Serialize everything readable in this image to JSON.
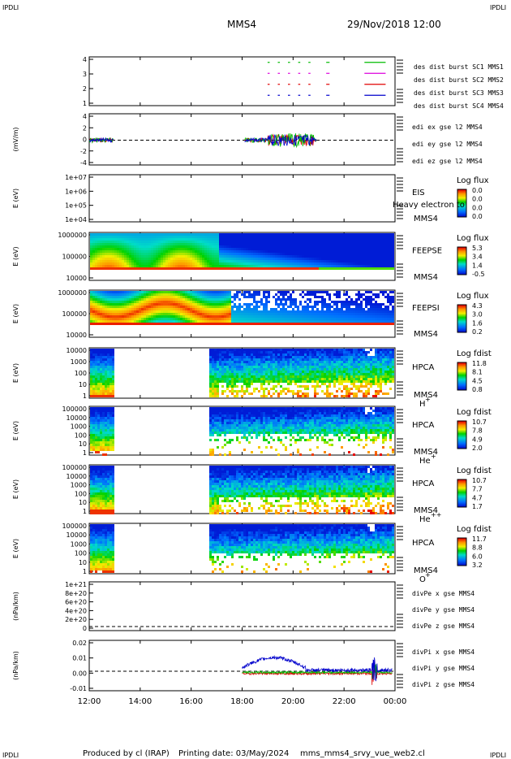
{
  "header": {
    "corner_tl": "IPDLI",
    "corner_tr": "IPDLI",
    "corner_bl": "IPDLI",
    "corner_br": "IPDLI",
    "spacecraft": "MMS4",
    "date": "29/Nov/2018 12:00"
  },
  "footer": {
    "produced": "Produced by cl (IRAP)",
    "printing": "Printing date: 03/May/2024",
    "script": "mms_mms4_srvy_vue_web2.cl"
  },
  "time_axis": [
    "12:00",
    "14:00",
    "16:00",
    "18:00",
    "20:00",
    "22:00",
    "00:00"
  ],
  "colors": {
    "mms1": "#0000cc",
    "mms2": "#e00000",
    "mms3": "#dd00dd",
    "mms4": "#00bb00",
    "ex": "#dd0000",
    "ey": "#00bb00",
    "ez": "#0000cc"
  },
  "chart_data": [
    {
      "type": "line",
      "title": "",
      "ylabel": "",
      "ylim": [
        0.5,
        4.5
      ],
      "yticks": [
        "4",
        "3",
        "2",
        "1"
      ],
      "legend": [
        "des dist burst SC1 MMS1",
        "des dist burst SC2 MMS2",
        "des dist burst SC3 MMS3",
        "des dist burst SC4 MMS4"
      ],
      "series": [
        {
          "name": "des dist burst SC1 MMS1",
          "level": 1,
          "intervals_h": [
            [
              19.0,
              19.05
            ],
            [
              19.4,
              19.45
            ],
            [
              19.8,
              19.85
            ],
            [
              20.2,
              20.25
            ],
            [
              20.6,
              20.65
            ],
            [
              21.3,
              21.4
            ],
            [
              22.8,
              23.6
            ]
          ]
        },
        {
          "name": "des dist burst SC2 MMS2",
          "level": 2,
          "intervals_h": [
            [
              19.0,
              19.05
            ],
            [
              19.4,
              19.45
            ],
            [
              19.8,
              19.85
            ],
            [
              20.2,
              20.25
            ],
            [
              20.6,
              20.65
            ],
            [
              21.3,
              21.4
            ],
            [
              22.8,
              23.6
            ]
          ]
        },
        {
          "name": "des dist burst SC3 MMS3",
          "level": 3,
          "intervals_h": [
            [
              19.0,
              19.05
            ],
            [
              19.4,
              19.45
            ],
            [
              19.8,
              19.85
            ],
            [
              20.2,
              20.25
            ],
            [
              20.6,
              20.65
            ],
            [
              21.3,
              21.4
            ],
            [
              22.8,
              23.6
            ]
          ]
        },
        {
          "name": "des dist burst SC4 MMS4",
          "level": 4,
          "intervals_h": [
            [
              19.0,
              19.05
            ],
            [
              19.4,
              19.45
            ],
            [
              19.8,
              19.85
            ],
            [
              20.2,
              20.25
            ],
            [
              20.6,
              20.65
            ],
            [
              21.3,
              21.4
            ],
            [
              22.8,
              23.6
            ]
          ]
        }
      ]
    },
    {
      "type": "line",
      "title": "",
      "ylabel": "(mV/m)",
      "ylim": [
        -4,
        4
      ],
      "yticks": [
        "4",
        "2",
        "0",
        "-2",
        "-4"
      ],
      "legend": [
        "edi ex gse l2 MMS4",
        "edi ey gse l2 MMS4",
        "edi ez gse l2 MMS4"
      ]
    },
    {
      "type": "heatmap",
      "ylabel": "E (eV)",
      "yticks": [
        "1e+07",
        "1e+06",
        "1e+05",
        "1e+04"
      ],
      "instrument": "EIS",
      "spacecraft": "MMS4",
      "overlay_text": "Heavy electron to",
      "colorbar_title": "Log flux",
      "colorbar_ticks": [
        "0.0",
        "0.0",
        "0.0",
        "0.0"
      ]
    },
    {
      "type": "heatmap",
      "ylabel": "E (eV)",
      "yticks": [
        "1000000",
        "100000",
        "10000"
      ],
      "instrument": "FEEPSE",
      "spacecraft": "MMS4",
      "colorbar_title": "Log flux",
      "colorbar_ticks": [
        "5.3",
        "3.4",
        "1.4",
        "-0.5"
      ]
    },
    {
      "type": "heatmap",
      "ylabel": "E (eV)",
      "yticks": [
        "1000000",
        "100000",
        "10000"
      ],
      "instrument": "FEEPSI",
      "spacecraft": "MMS4",
      "colorbar_title": "Log flux",
      "colorbar_ticks": [
        "4.3",
        "3.0",
        "1.6",
        "0.2"
      ]
    },
    {
      "type": "heatmap",
      "ylabel": "E (eV)",
      "yticks": [
        "10000",
        "1000",
        "100",
        "10",
        "1"
      ],
      "instrument": "HPCA",
      "spacecraft": "MMS4",
      "species": "H",
      "species_sup": "+",
      "colorbar_title": "Log fdist",
      "colorbar_ticks": [
        "11.8",
        "8.1",
        "4.5",
        "0.8"
      ]
    },
    {
      "type": "heatmap",
      "ylabel": "E (eV)",
      "yticks": [
        "100000",
        "10000",
        "1000",
        "100",
        "10",
        "1"
      ],
      "instrument": "HPCA",
      "spacecraft": "MMS4",
      "species": "He",
      "species_sup": "+",
      "colorbar_title": "Log fdist",
      "colorbar_ticks": [
        "10.7",
        "7.8",
        "4.9",
        "2.0"
      ]
    },
    {
      "type": "heatmap",
      "ylabel": "E (eV)",
      "yticks": [
        "100000",
        "10000",
        "1000",
        "100",
        "10",
        "1"
      ],
      "instrument": "HPCA",
      "spacecraft": "MMS4",
      "species": "He",
      "species_sup": "++",
      "colorbar_title": "Log fdist",
      "colorbar_ticks": [
        "10.7",
        "7.7",
        "4.7",
        "1.7"
      ]
    },
    {
      "type": "heatmap",
      "ylabel": "E (eV)",
      "yticks": [
        "100000",
        "10000",
        "1000",
        "100",
        "10",
        "1"
      ],
      "instrument": "HPCA",
      "spacecraft": "MMS4",
      "species": "O",
      "species_sup": "+",
      "colorbar_title": "Log fdist",
      "colorbar_ticks": [
        "11.7",
        "8.8",
        "6.0",
        "3.2"
      ]
    },
    {
      "type": "line",
      "ylabel": "(nPa/km)",
      "ylim": [
        0,
        1.1e+21
      ],
      "yticks": [
        "1e+21",
        "8e+20",
        "6e+20",
        "4e+20",
        "2e+20",
        "0"
      ],
      "legend": [
        "divPe x gse MMS4",
        "divPe y gse MMS4",
        "divPe z gse MMS4"
      ]
    },
    {
      "type": "line",
      "ylabel": "(nPa/km)",
      "ylim": [
        -0.015,
        0.025
      ],
      "yticks": [
        "0.02",
        "0.01",
        "0.00",
        "-0.01"
      ],
      "legend": [
        "divPi x gse MMS4",
        "divPi y gse MMS4",
        "divPi z gse MMS4"
      ]
    }
  ]
}
